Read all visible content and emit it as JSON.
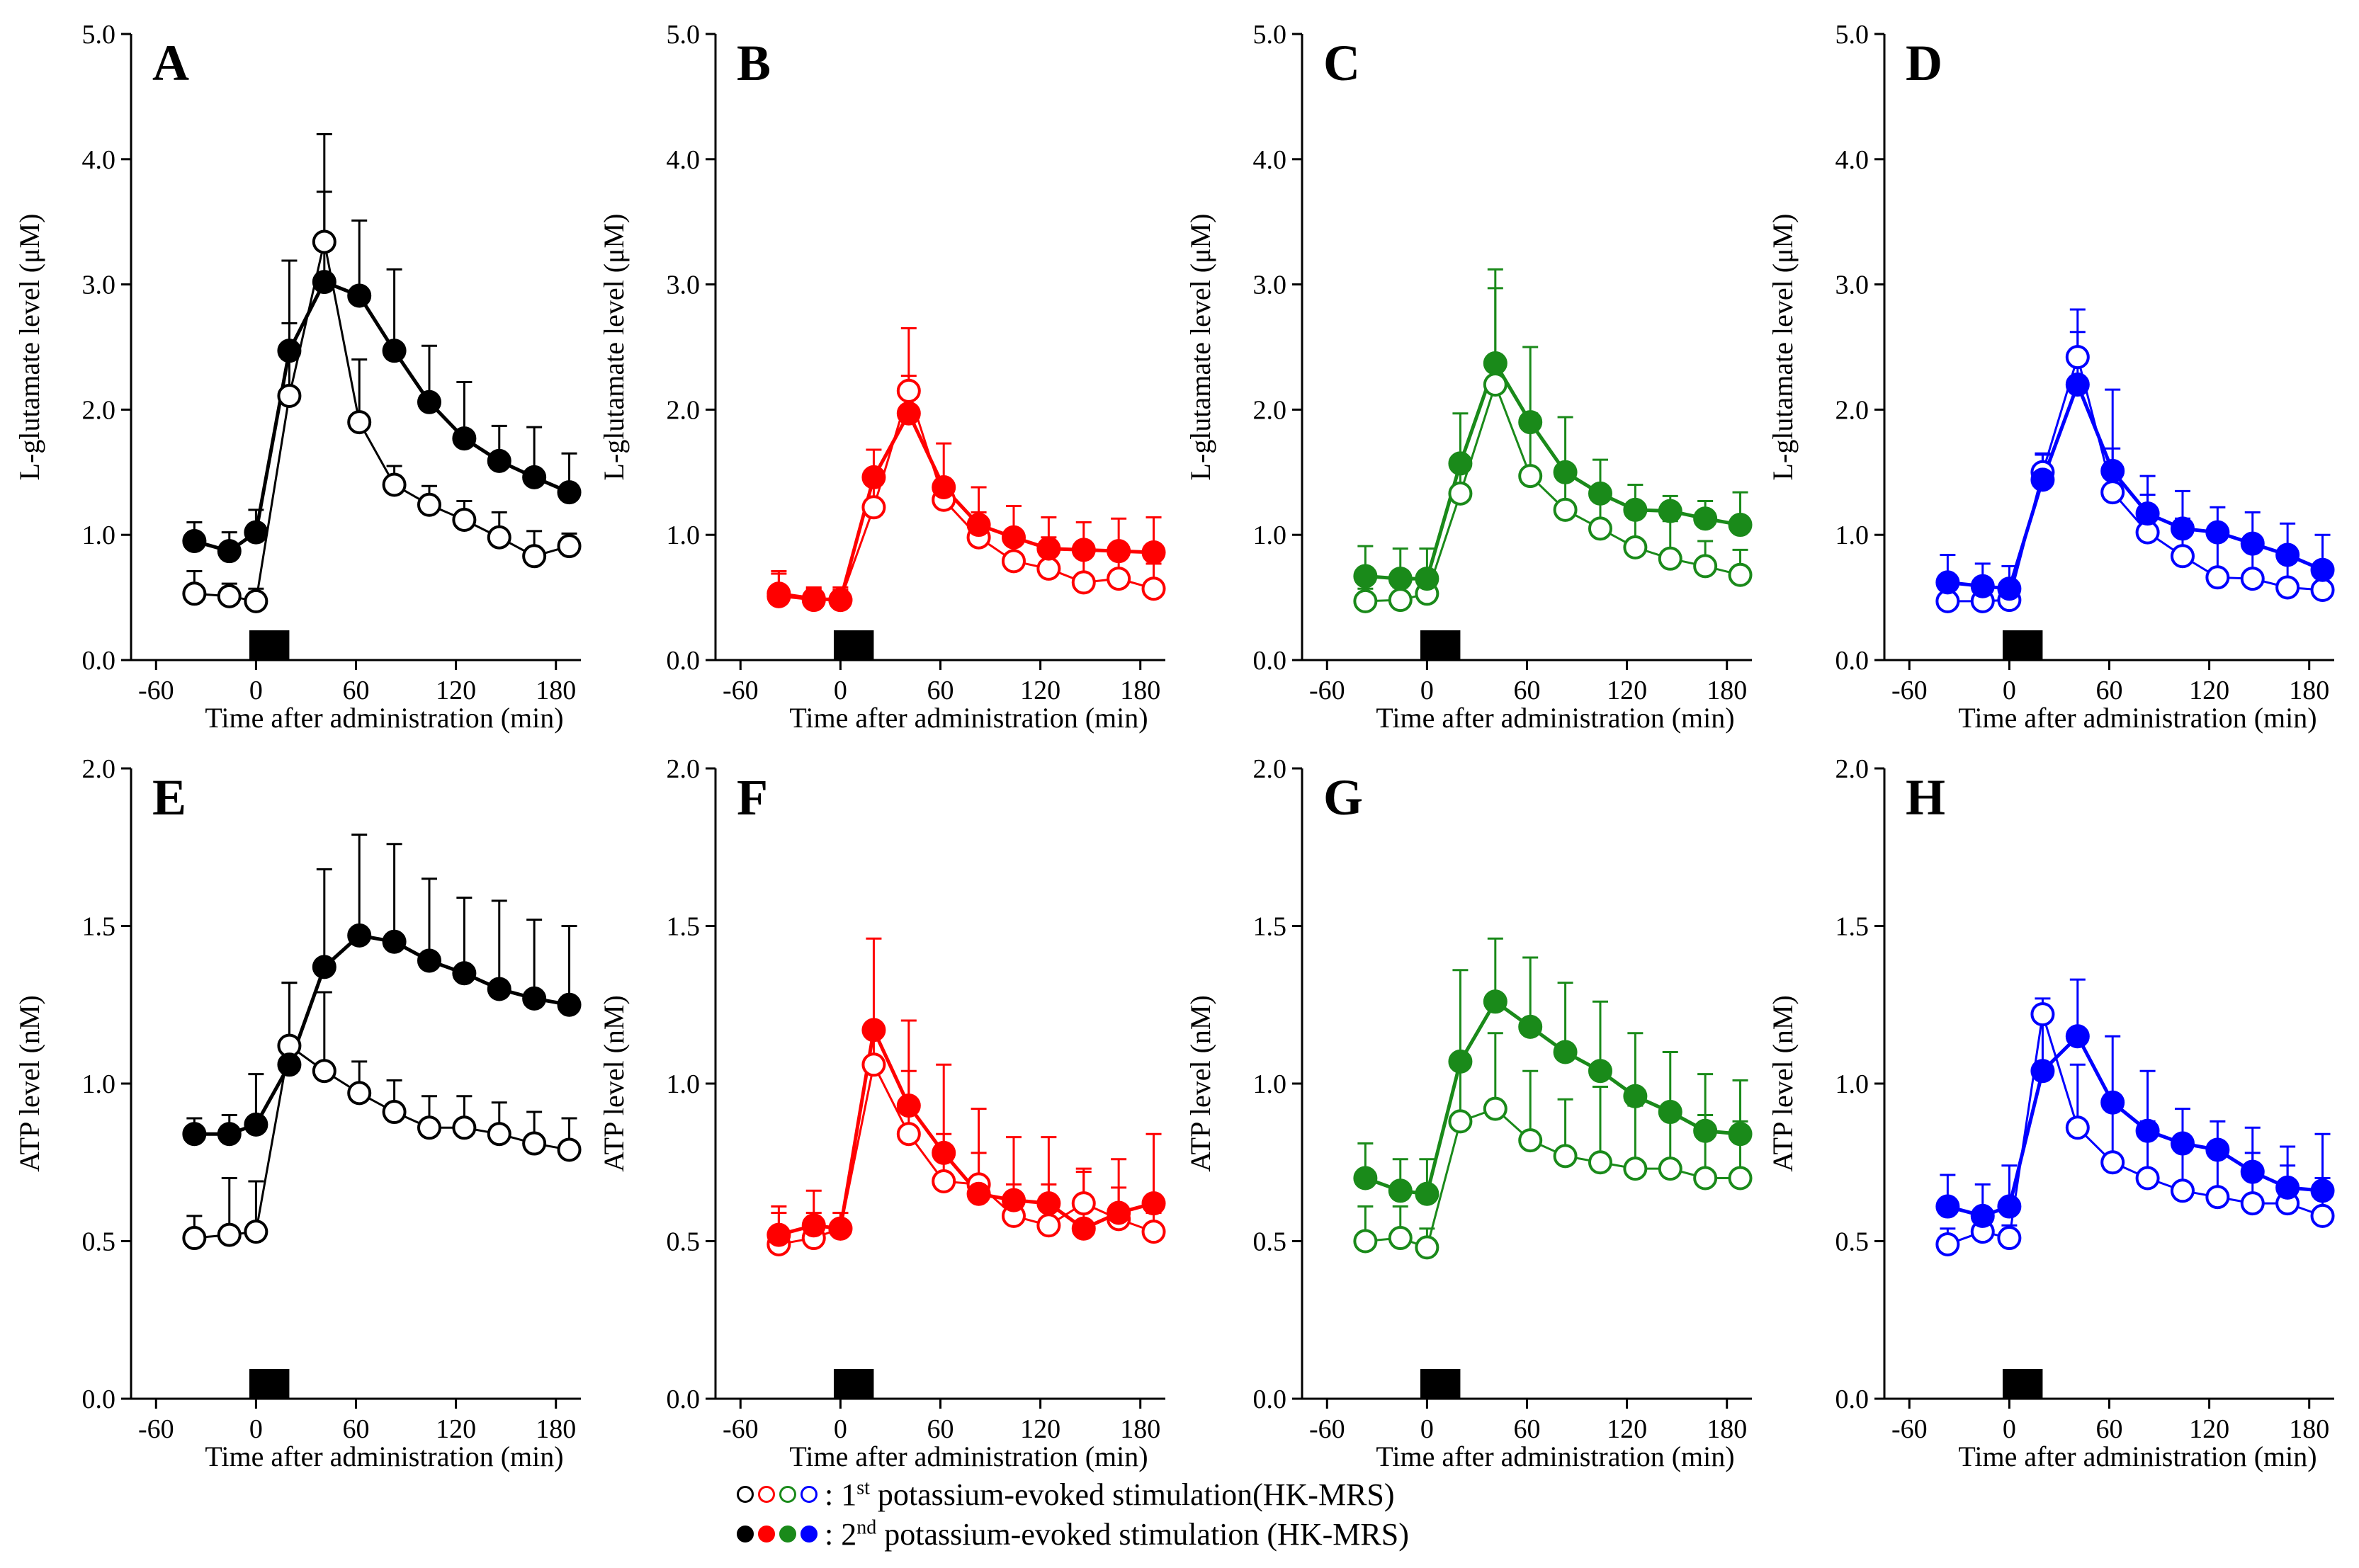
{
  "figure": {
    "colors": {
      "A": "#000000",
      "B": "#ff0000",
      "C": "#1a8a1a",
      "D": "#0000ff"
    },
    "x_ticks": [
      -60,
      0,
      60,
      120,
      180
    ],
    "x_label": "Time after administration (min)",
    "x_times": [
      -37,
      -16,
      0,
      20,
      41,
      62,
      83,
      104,
      125,
      146,
      167,
      188
    ]
  },
  "legend": {
    "first_prefix": ":",
    "first_ordinal": "1",
    "first_sup": "st",
    "first_text": "potassium-evoked stimulation(HK-MRS)",
    "second_prefix": ":",
    "second_ordinal": "2",
    "second_sup": "nd",
    "second_text": "potassium-evoked stimulation (HK-MRS)",
    "colors": [
      "#000000",
      "#ff0000",
      "#1a8a1a",
      "#0000ff"
    ]
  },
  "chart_data": [
    {
      "panel": "A",
      "type": "line",
      "ylabel": "L-glutamate level (μM)",
      "ylim": [
        0,
        5
      ],
      "yticks": [
        "0.0",
        "1.0",
        "2.0",
        "3.0",
        "4.0",
        "5.0"
      ],
      "color": "#000000",
      "series": [
        {
          "name": "1st",
          "marker": "open",
          "values": [
            0.53,
            0.51,
            0.47,
            2.11,
            3.34,
            1.9,
            1.4,
            1.24,
            1.12,
            0.98,
            0.83,
            0.91
          ],
          "err": [
            0.18,
            0.1,
            0.1,
            0.58,
            0.86,
            0.5,
            0.15,
            0.15,
            0.15,
            0.2,
            0.2,
            0.1
          ]
        },
        {
          "name": "2nd",
          "marker": "filled",
          "values": [
            0.95,
            0.87,
            1.02,
            2.47,
            3.02,
            2.91,
            2.47,
            2.06,
            1.77,
            1.59,
            1.46,
            1.34
          ],
          "err": [
            0.15,
            0.15,
            0.18,
            0.72,
            0.72,
            0.6,
            0.65,
            0.45,
            0.45,
            0.28,
            0.4,
            0.31
          ]
        }
      ]
    },
    {
      "panel": "B",
      "type": "line",
      "ylabel": "L-glutamate level (μM)",
      "ylim": [
        0,
        5
      ],
      "yticks": [
        "0.0",
        "1.0",
        "2.0",
        "3.0",
        "4.0",
        "5.0"
      ],
      "color": "#ff0000",
      "series": [
        {
          "name": "1st",
          "marker": "open",
          "values": [
            0.51,
            0.48,
            0.48,
            1.22,
            2.15,
            1.28,
            0.98,
            0.79,
            0.73,
            0.62,
            0.65,
            0.57
          ],
          "err": [
            0.18,
            0.1,
            0.1,
            0.25,
            0.5,
            0.12,
            0.2,
            0.25,
            0.25,
            0.3,
            0.2,
            0.2
          ]
        },
        {
          "name": "2nd",
          "marker": "filled",
          "values": [
            0.53,
            0.49,
            0.48,
            1.46,
            1.97,
            1.38,
            1.08,
            0.98,
            0.89,
            0.88,
            0.87,
            0.86
          ],
          "err": [
            0.18,
            0.08,
            0.08,
            0.22,
            0.3,
            0.35,
            0.3,
            0.25,
            0.25,
            0.22,
            0.26,
            0.28
          ]
        }
      ]
    },
    {
      "panel": "C",
      "type": "line",
      "ylabel": "L-glutamate level (μM)",
      "ylim": [
        0,
        5
      ],
      "yticks": [
        "0.0",
        "1.0",
        "2.0",
        "3.0",
        "4.0",
        "5.0"
      ],
      "color": "#1a8a1a",
      "series": [
        {
          "name": "1st",
          "marker": "open",
          "values": [
            0.47,
            0.48,
            0.53,
            1.33,
            2.2,
            1.47,
            1.2,
            1.05,
            0.9,
            0.81,
            0.75,
            0.68
          ],
          "err": [
            0.1,
            0.1,
            0.15,
            0.3,
            0.77,
            0.5,
            0.35,
            0.3,
            0.3,
            0.3,
            0.2,
            0.2
          ]
        },
        {
          "name": "2nd",
          "marker": "filled",
          "values": [
            0.67,
            0.65,
            0.65,
            1.57,
            2.37,
            1.9,
            1.5,
            1.33,
            1.2,
            1.19,
            1.13,
            1.08
          ],
          "err": [
            0.24,
            0.24,
            0.24,
            0.4,
            0.75,
            0.6,
            0.44,
            0.27,
            0.2,
            0.12,
            0.14,
            0.26
          ]
        }
      ]
    },
    {
      "panel": "D",
      "type": "line",
      "ylabel": "L-glutamate level (μM)",
      "ylim": [
        0,
        5
      ],
      "yticks": [
        "0.0",
        "1.0",
        "2.0",
        "3.0",
        "4.0",
        "5.0"
      ],
      "color": "#0000ff",
      "series": [
        {
          "name": "1st",
          "marker": "open",
          "values": [
            0.47,
            0.47,
            0.48,
            1.5,
            2.42,
            1.34,
            1.02,
            0.83,
            0.66,
            0.65,
            0.58,
            0.56
          ],
          "err": [
            0.1,
            0.1,
            0.15,
            0.15,
            0.2,
            0.35,
            0.3,
            0.3,
            0.3,
            0.25,
            0.2,
            0.2
          ]
        },
        {
          "name": "2nd",
          "marker": "filled",
          "values": [
            0.62,
            0.59,
            0.57,
            1.44,
            2.2,
            1.51,
            1.17,
            1.05,
            1.02,
            0.93,
            0.84,
            0.72
          ],
          "err": [
            0.22,
            0.18,
            0.18,
            0.2,
            0.6,
            0.65,
            0.3,
            0.3,
            0.2,
            0.25,
            0.25,
            0.28
          ]
        }
      ]
    },
    {
      "panel": "E",
      "type": "line",
      "ylabel": "ATP level (nM)",
      "ylim": [
        0,
        2
      ],
      "yticks": [
        "0.0",
        "0.5",
        "1.0",
        "1.5",
        "2.0"
      ],
      "color": "#000000",
      "series": [
        {
          "name": "1st",
          "marker": "open",
          "values": [
            0.51,
            0.52,
            0.53,
            1.12,
            1.04,
            0.97,
            0.91,
            0.86,
            0.86,
            0.84,
            0.81,
            0.79
          ],
          "err": [
            0.07,
            0.18,
            0.16,
            0.2,
            0.25,
            0.1,
            0.1,
            0.1,
            0.1,
            0.1,
            0.1,
            0.1
          ]
        },
        {
          "name": "2nd",
          "marker": "filled",
          "values": [
            0.84,
            0.84,
            0.87,
            1.06,
            1.37,
            1.47,
            1.45,
            1.39,
            1.35,
            1.3,
            1.27,
            1.25
          ],
          "err": [
            0.05,
            0.06,
            0.16,
            0.26,
            0.31,
            0.32,
            0.31,
            0.26,
            0.24,
            0.28,
            0.25,
            0.25
          ]
        }
      ]
    },
    {
      "panel": "F",
      "type": "line",
      "ylabel": "ATP level (nM)",
      "ylim": [
        0,
        2
      ],
      "yticks": [
        "0.0",
        "0.5",
        "1.0",
        "1.5",
        "2.0"
      ],
      "color": "#ff0000",
      "series": [
        {
          "name": "1st",
          "marker": "open",
          "values": [
            0.49,
            0.51,
            0.54,
            1.06,
            0.84,
            0.69,
            0.68,
            0.58,
            0.55,
            0.62,
            0.57,
            0.53
          ],
          "err": [
            0.1,
            0.08,
            0.05,
            0.1,
            0.2,
            0.15,
            0.1,
            0.1,
            0.13,
            0.1,
            0.1,
            0.06
          ]
        },
        {
          "name": "2nd",
          "marker": "filled",
          "values": [
            0.52,
            0.55,
            0.54,
            1.17,
            0.93,
            0.78,
            0.65,
            0.63,
            0.62,
            0.54,
            0.59,
            0.62
          ],
          "err": [
            0.09,
            0.11,
            0.05,
            0.29,
            0.27,
            0.28,
            0.27,
            0.2,
            0.21,
            0.19,
            0.17,
            0.22
          ]
        }
      ]
    },
    {
      "panel": "G",
      "type": "line",
      "ylabel": "ATP level (nM)",
      "ylim": [
        0,
        2
      ],
      "yticks": [
        "0.0",
        "0.5",
        "1.0",
        "1.5",
        "2.0"
      ],
      "color": "#1a8a1a",
      "series": [
        {
          "name": "1st",
          "marker": "open",
          "values": [
            0.5,
            0.51,
            0.48,
            0.88,
            0.92,
            0.82,
            0.77,
            0.75,
            0.73,
            0.73,
            0.7,
            0.7
          ],
          "err": [
            0.11,
            0.1,
            0.06,
            0.18,
            0.24,
            0.22,
            0.18,
            0.24,
            0.2,
            0.2,
            0.2,
            0.18
          ]
        },
        {
          "name": "2nd",
          "marker": "filled",
          "values": [
            0.7,
            0.66,
            0.65,
            1.07,
            1.26,
            1.18,
            1.1,
            1.04,
            0.96,
            0.91,
            0.85,
            0.84
          ],
          "err": [
            0.11,
            0.1,
            0.11,
            0.29,
            0.2,
            0.22,
            0.22,
            0.22,
            0.2,
            0.19,
            0.18,
            0.17
          ]
        }
      ]
    },
    {
      "panel": "H",
      "type": "line",
      "ylabel": "ATP level (nM)",
      "ylim": [
        0,
        2
      ],
      "yticks": [
        "0.0",
        "0.5",
        "1.0",
        "1.5",
        "2.0"
      ],
      "color": "#0000ff",
      "series": [
        {
          "name": "1st",
          "marker": "open",
          "values": [
            0.49,
            0.53,
            0.51,
            1.22,
            0.86,
            0.75,
            0.7,
            0.66,
            0.64,
            0.62,
            0.62,
            0.58
          ],
          "err": [
            0.05,
            0.04,
            0.04,
            0.05,
            0.2,
            0.18,
            0.18,
            0.17,
            0.15,
            0.16,
            0.12,
            0.12
          ]
        },
        {
          "name": "2nd",
          "marker": "filled",
          "values": [
            0.61,
            0.58,
            0.61,
            1.04,
            1.15,
            0.94,
            0.85,
            0.81,
            0.79,
            0.72,
            0.67,
            0.66
          ],
          "err": [
            0.1,
            0.1,
            0.13,
            0.2,
            0.18,
            0.21,
            0.19,
            0.11,
            0.09,
            0.14,
            0.13,
            0.18
          ]
        }
      ]
    }
  ]
}
